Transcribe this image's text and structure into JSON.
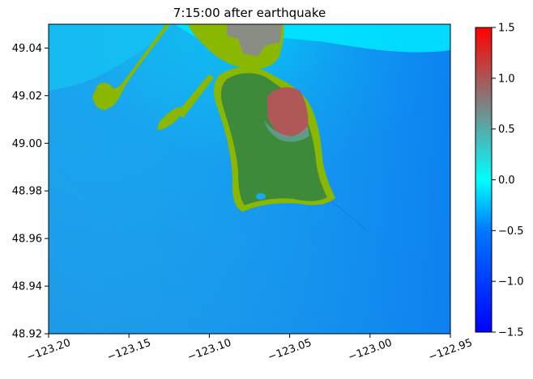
{
  "chart_data": {
    "type": "heatmap",
    "title": "7:15:00 after earthquake",
    "xlabel": "",
    "ylabel": "",
    "xlim": [
      -123.2,
      -122.95
    ],
    "ylim": [
      48.92,
      49.05
    ],
    "x_ticks": [
      -123.2,
      -123.15,
      -123.1,
      -123.05,
      -123.0,
      -122.95
    ],
    "x_tick_labels": [
      "−123.20",
      "−123.15",
      "−123.10",
      "−123.05",
      "−123.00",
      "−122.95"
    ],
    "y_ticks": [
      48.92,
      48.94,
      48.96,
      48.98,
      49.0,
      49.02,
      49.04
    ],
    "y_tick_labels": [
      "48.92",
      "48.94",
      "48.96",
      "48.98",
      "49.00",
      "49.02",
      "49.04"
    ],
    "grid": false,
    "colorbar": {
      "range": [
        -1.5,
        1.5
      ],
      "ticks": [
        -1.5,
        -1.0,
        -0.5,
        0.0,
        0.5,
        1.0,
        1.5
      ],
      "tick_labels": [
        "−1.5",
        "−1.0",
        "−0.5",
        "0.0",
        "0.5",
        "1.0",
        "1.5"
      ],
      "colors": [
        "#0000ff",
        "#0078ff",
        "#00ffff",
        "#808080",
        "#ff0000"
      ]
    },
    "colors": {
      "water_deep": "#0878f0",
      "water_mid": "#1aa8ee",
      "water_shallow": "#00e8ff",
      "land_dry": "#3c8a3a",
      "land_wet": "#8ab800",
      "flooded_high": "#b05858",
      "urban": "#8a8a8a"
    }
  }
}
